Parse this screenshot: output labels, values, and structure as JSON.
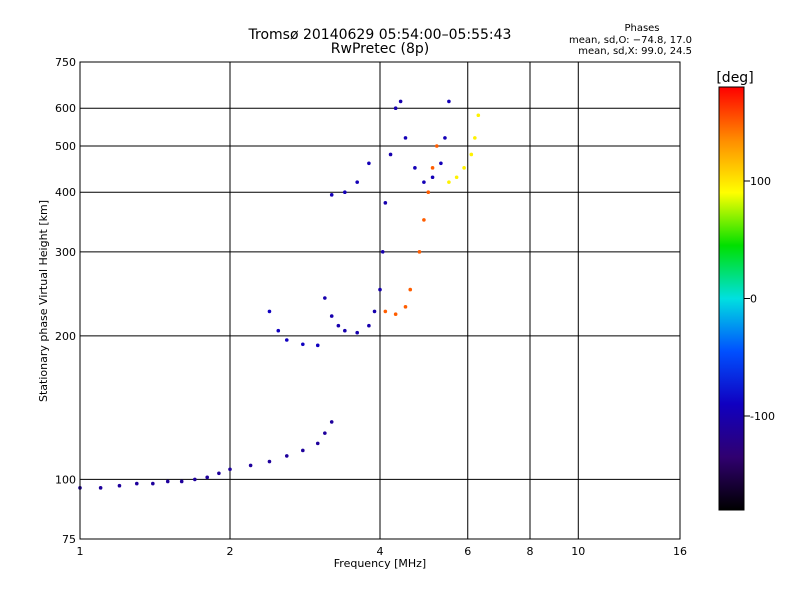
{
  "chart_data": {
    "type": "scatter",
    "title": "Tromsø 20140629 05:54:00–05:55:43",
    "subtitle": "RwPretec (8p)",
    "xlabel": "Frequency [MHz]",
    "ylabel": "Stationary phase Virtual Height [km]",
    "x_scale": "log",
    "y_scale": "log",
    "xlim": [
      1,
      16
    ],
    "ylim": [
      75,
      750
    ],
    "x_ticks": [
      1,
      2,
      4,
      6,
      8,
      10,
      16
    ],
    "x_tick_labels": [
      "1",
      "2",
      "4",
      "6",
      "8",
      "10",
      "16"
    ],
    "y_ticks": [
      75,
      100,
      200,
      300,
      400,
      500,
      600,
      750
    ],
    "y_tick_labels": [
      "75",
      "100",
      "200",
      "300",
      "400",
      "500",
      "600",
      "750"
    ],
    "x_grid_lines": [
      2,
      4,
      6,
      8,
      10
    ],
    "y_grid_lines": [
      100,
      200,
      300,
      400,
      500,
      600
    ],
    "grid": true,
    "phase_stats": {
      "heading": "Phases",
      "line_o": "mean, sd,O: −74.8, 17.0",
      "line_x": "mean, sd,X:  99.0, 24.5"
    },
    "colorbar": {
      "label": "[deg]",
      "min": -180,
      "max": 180,
      "ticks": [
        100,
        0,
        -100
      ],
      "tick_labels": [
        "100",
        "0",
        "-100"
      ],
      "colors": [
        "#ff0000",
        "#ff8c00",
        "#ffff00",
        "#00e000",
        "#00e0e0",
        "#0050ff",
        "#1000c0",
        "#300070",
        "#000000"
      ]
    },
    "traces": [
      {
        "points": [
          [
            1.0,
            96
          ],
          [
            1.1,
            96
          ],
          [
            1.2,
            97
          ],
          [
            1.3,
            98
          ],
          [
            1.4,
            98
          ],
          [
            1.5,
            99
          ],
          [
            1.6,
            99
          ],
          [
            1.7,
            100
          ],
          [
            1.8,
            101
          ],
          [
            1.9,
            103
          ],
          [
            2.0,
            105
          ],
          [
            2.2,
            107
          ],
          [
            2.4,
            109
          ],
          [
            2.6,
            112
          ],
          [
            2.8,
            115
          ],
          [
            3.0,
            119
          ],
          [
            3.1,
            125
          ],
          [
            3.2,
            132
          ]
        ],
        "phase": -110
      },
      {
        "points": [
          [
            2.4,
            225
          ],
          [
            2.5,
            205
          ],
          [
            2.6,
            196
          ],
          [
            2.8,
            192
          ],
          [
            3.0,
            191
          ]
        ],
        "phase": -90
      },
      {
        "points": [
          [
            3.1,
            240
          ],
          [
            3.2,
            220
          ],
          [
            3.3,
            210
          ],
          [
            3.4,
            205
          ],
          [
            3.6,
            203
          ],
          [
            3.8,
            210
          ],
          [
            3.9,
            225
          ],
          [
            4.0,
            250
          ],
          [
            4.05,
            300
          ],
          [
            4.1,
            380
          ],
          [
            4.2,
            480
          ],
          [
            4.3,
            600
          ],
          [
            4.4,
            620
          ]
        ],
        "phase": -100
      },
      {
        "points": [
          [
            4.5,
            520
          ],
          [
            4.7,
            450
          ],
          [
            4.9,
            420
          ],
          [
            5.1,
            430
          ],
          [
            5.3,
            460
          ],
          [
            5.4,
            520
          ],
          [
            5.5,
            620
          ]
        ],
        "phase": -95
      },
      {
        "points": [
          [
            3.2,
            395
          ],
          [
            3.4,
            400
          ],
          [
            3.6,
            420
          ],
          [
            3.8,
            460
          ]
        ],
        "phase": -95
      },
      {
        "points": [
          [
            4.1,
            225
          ],
          [
            4.3,
            222
          ],
          [
            4.5,
            230
          ],
          [
            4.6,
            250
          ],
          [
            4.8,
            300
          ],
          [
            4.9,
            350
          ],
          [
            5.0,
            400
          ],
          [
            5.1,
            450
          ],
          [
            5.2,
            500
          ]
        ],
        "phase": 150
      },
      {
        "points": [
          [
            5.5,
            420
          ],
          [
            5.7,
            430
          ],
          [
            5.9,
            450
          ],
          [
            6.1,
            480
          ],
          [
            6.2,
            520
          ],
          [
            6.3,
            580
          ]
        ],
        "phase": 95
      }
    ]
  }
}
